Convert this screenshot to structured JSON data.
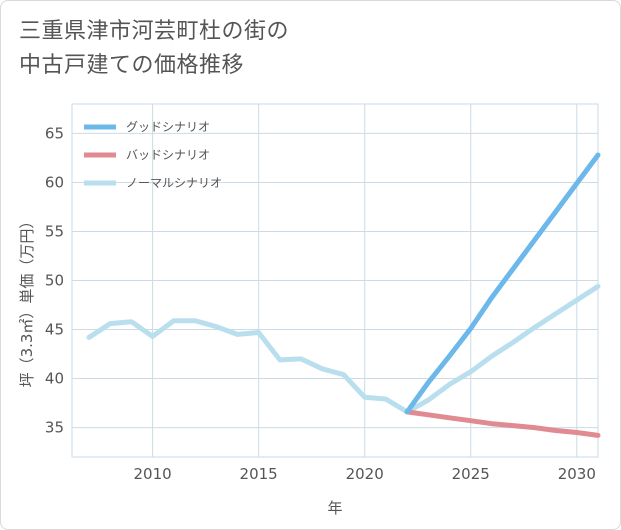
{
  "title": {
    "line1": "三重県津市河芸町杜の街の",
    "line2": "中古戸建ての価格推移"
  },
  "colors": {
    "good": "#6cb8ea",
    "bad": "#e08a92",
    "normal": "#b9dfee",
    "grid": "#ccdbe6",
    "text": "#555555"
  },
  "chart_data": {
    "type": "line",
    "xlabel": "年",
    "ylabel": "坪（3.3㎡）単価（万円）",
    "xlim": [
      2006.2,
      2031
    ],
    "ylim": [
      32,
      68
    ],
    "xticks": [
      2010,
      2015,
      2020,
      2025,
      2030
    ],
    "yticks": [
      35,
      40,
      45,
      50,
      55,
      60,
      65
    ],
    "legend_position": "top-left",
    "series": [
      {
        "key": "good",
        "name": "グッドシナリオ",
        "x": [
          2022,
          2023,
          2024,
          2025,
          2026,
          2027,
          2028,
          2029,
          2030,
          2031
        ],
        "y": [
          36.6,
          39.6,
          42.3,
          45.1,
          48.3,
          51.2,
          54.1,
          57.0,
          59.9,
          62.8
        ]
      },
      {
        "key": "bad",
        "name": "バッドシナリオ",
        "x": [
          2022,
          2023,
          2024,
          2025,
          2026,
          2027,
          2028,
          2029,
          2030,
          2031
        ],
        "y": [
          36.6,
          36.3,
          36.0,
          35.7,
          35.4,
          35.2,
          35.0,
          34.7,
          34.5,
          34.2
        ]
      },
      {
        "key": "normal",
        "name": "ノーマルシナリオ",
        "x": [
          2007,
          2008,
          2009,
          2010,
          2011,
          2012,
          2013,
          2014,
          2015,
          2016,
          2017,
          2018,
          2019,
          2020,
          2021,
          2022,
          2023,
          2024,
          2025,
          2026,
          2027,
          2028,
          2029,
          2030,
          2031
        ],
        "y": [
          44.2,
          45.6,
          45.8,
          44.3,
          45.9,
          45.9,
          45.3,
          44.5,
          44.7,
          41.9,
          42.0,
          41.0,
          40.4,
          38.1,
          37.9,
          36.6,
          37.8,
          39.4,
          40.7,
          42.3,
          43.7,
          45.2,
          46.6,
          48.0,
          49.4
        ]
      }
    ]
  }
}
